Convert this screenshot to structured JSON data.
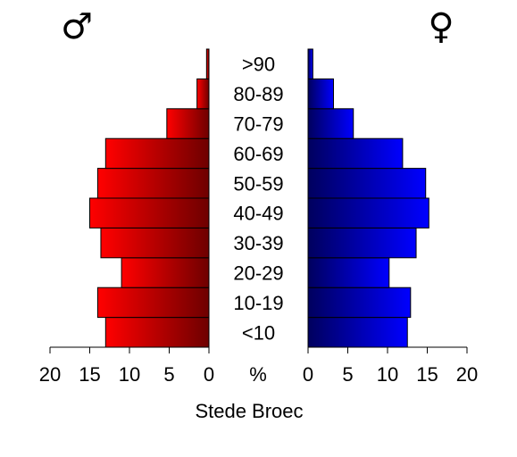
{
  "chart_data": {
    "type": "bar",
    "subtype": "population-pyramid",
    "title": "Stede Broec",
    "unit_label": "%",
    "left_symbol": "♂",
    "right_symbol": "♀",
    "categories": [
      "<10",
      "10-19",
      "20-29",
      "30-39",
      "40-49",
      "50-59",
      "60-69",
      "70-79",
      "80-89",
      ">90"
    ],
    "series": [
      {
        "side": "left",
        "values": [
          13.0,
          14.0,
          11.0,
          13.6,
          15.0,
          14.0,
          13.0,
          5.3,
          1.5,
          0.3
        ],
        "color": "#ff0000",
        "color_dark": "#6e0000"
      },
      {
        "side": "right",
        "values": [
          12.5,
          12.9,
          10.2,
          13.6,
          15.2,
          14.8,
          11.9,
          5.7,
          3.2,
          0.6
        ],
        "color": "#0000ff",
        "color_dark": "#00005e"
      }
    ],
    "xlim": [
      0,
      20
    ],
    "xticks": [
      0,
      5,
      10,
      15,
      20
    ],
    "grid": false,
    "legend": "none"
  }
}
